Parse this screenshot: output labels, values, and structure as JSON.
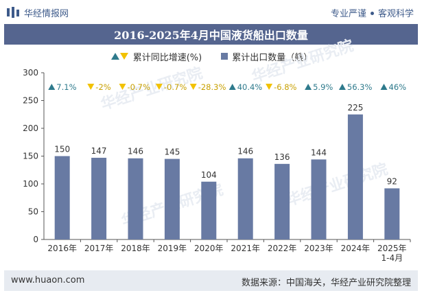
{
  "header": {
    "brand": "华经情报网",
    "tagline_left": "专业严谨",
    "tagline_right": "客观科学"
  },
  "footer": {
    "website": "www.huaon.com",
    "source": "数据来源：中国海关，华经产业研究院整理"
  },
  "watermark": "华经产业研究院",
  "colors": {
    "bar": "#687aa3",
    "up": "#2e7a8c",
    "down": "#f2c200",
    "title_bg": "#55658f",
    "brand": "#3d5a8a"
  },
  "chart_data": {
    "type": "bar",
    "title": "2016-2025年4月中国液货船出口数量",
    "categories": [
      "2016年",
      "2017年",
      "2018年",
      "2019年",
      "2020年",
      "2021年",
      "2022年",
      "2023年",
      "2024年",
      "2025年\n1-4月"
    ],
    "series": [
      {
        "name": "累计出口数量（艘）",
        "type": "bar",
        "values": [
          150,
          147,
          146,
          145,
          104,
          146,
          136,
          144,
          225,
          92
        ]
      },
      {
        "name": "累计同比增速(%)",
        "type": "indicator",
        "labels": [
          "7.1%",
          "-2%",
          "-0.7%",
          "-0.7%",
          "-28.3%",
          "40.4%",
          "-6.8%",
          "5.9%",
          "56.3%",
          "46%"
        ],
        "direction": [
          "up",
          "down",
          "down",
          "down",
          "down",
          "up",
          "down",
          "up",
          "up",
          "up"
        ]
      }
    ],
    "ylim": [
      0,
      300
    ],
    "yticks": [
      0,
      50,
      100,
      150,
      200,
      250,
      300
    ],
    "legend": [
      "累计同比增速(%)",
      "累计出口数量（艘）"
    ],
    "legend_position": "top",
    "grid": false
  }
}
